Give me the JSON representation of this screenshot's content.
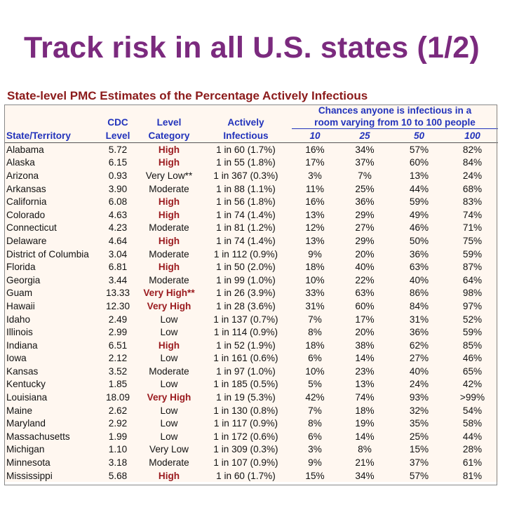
{
  "title": "Track risk in all U.S. states (1/2)",
  "subtitle": "State-level PMC Estimates of the Percentage Actively Infectious",
  "table": {
    "headers": {
      "state": "State/Territory",
      "cdc_line1": "CDC",
      "cdc_line2": "Level",
      "level_line1": "Level",
      "level_line2": "Category",
      "active_line1": "Actively",
      "active_line2": "Infectious",
      "chances_line1": "Chances anyone is infectious in a",
      "chances_line2": "room varying from 10 to 100 people",
      "room_sizes": [
        "10",
        "25",
        "50",
        "100"
      ]
    },
    "rows": [
      {
        "state": "Alabama",
        "cdc": "5.72",
        "category": "High",
        "active": "1 in 60 (1.7%)",
        "p10": "16%",
        "p25": "34%",
        "p50": "57%",
        "p100": "82%"
      },
      {
        "state": "Alaska",
        "cdc": "6.15",
        "category": "High",
        "active": "1 in 55 (1.8%)",
        "p10": "17%",
        "p25": "37%",
        "p50": "60%",
        "p100": "84%"
      },
      {
        "state": "Arizona",
        "cdc": "0.93",
        "category": "Very Low**",
        "active": "1 in 367 (0.3%)",
        "p10": "3%",
        "p25": "7%",
        "p50": "13%",
        "p100": "24%"
      },
      {
        "state": "Arkansas",
        "cdc": "3.90",
        "category": "Moderate",
        "active": "1 in 88 (1.1%)",
        "p10": "11%",
        "p25": "25%",
        "p50": "44%",
        "p100": "68%"
      },
      {
        "state": "California",
        "cdc": "6.08",
        "category": "High",
        "active": "1 in 56 (1.8%)",
        "p10": "16%",
        "p25": "36%",
        "p50": "59%",
        "p100": "83%"
      },
      {
        "state": "Colorado",
        "cdc": "4.63",
        "category": "High",
        "active": "1 in 74 (1.4%)",
        "p10": "13%",
        "p25": "29%",
        "p50": "49%",
        "p100": "74%"
      },
      {
        "state": "Connecticut",
        "cdc": "4.23",
        "category": "Moderate",
        "active": "1 in 81 (1.2%)",
        "p10": "12%",
        "p25": "27%",
        "p50": "46%",
        "p100": "71%"
      },
      {
        "state": "Delaware",
        "cdc": "4.64",
        "category": "High",
        "active": "1 in 74 (1.4%)",
        "p10": "13%",
        "p25": "29%",
        "p50": "50%",
        "p100": "75%"
      },
      {
        "state": "District of Columbia",
        "cdc": "3.04",
        "category": "Moderate",
        "active": "1 in 112 (0.9%)",
        "p10": "9%",
        "p25": "20%",
        "p50": "36%",
        "p100": "59%"
      },
      {
        "state": "Florida",
        "cdc": "6.81",
        "category": "High",
        "active": "1 in 50 (2.0%)",
        "p10": "18%",
        "p25": "40%",
        "p50": "63%",
        "p100": "87%"
      },
      {
        "state": "Georgia",
        "cdc": "3.44",
        "category": "Moderate",
        "active": "1 in 99 (1.0%)",
        "p10": "10%",
        "p25": "22%",
        "p50": "40%",
        "p100": "64%"
      },
      {
        "state": "Guam",
        "cdc": "13.33",
        "category": "Very High**",
        "active": "1 in 26 (3.9%)",
        "p10": "33%",
        "p25": "63%",
        "p50": "86%",
        "p100": "98%"
      },
      {
        "state": "Hawaii",
        "cdc": "12.30",
        "category": "Very High",
        "active": "1 in 28 (3.6%)",
        "p10": "31%",
        "p25": "60%",
        "p50": "84%",
        "p100": "97%"
      },
      {
        "state": "Idaho",
        "cdc": "2.49",
        "category": "Low",
        "active": "1 in 137 (0.7%)",
        "p10": "7%",
        "p25": "17%",
        "p50": "31%",
        "p100": "52%"
      },
      {
        "state": "Illinois",
        "cdc": "2.99",
        "category": "Low",
        "active": "1 in 114 (0.9%)",
        "p10": "8%",
        "p25": "20%",
        "p50": "36%",
        "p100": "59%"
      },
      {
        "state": "Indiana",
        "cdc": "6.51",
        "category": "High",
        "active": "1 in 52 (1.9%)",
        "p10": "18%",
        "p25": "38%",
        "p50": "62%",
        "p100": "85%"
      },
      {
        "state": "Iowa",
        "cdc": "2.12",
        "category": "Low",
        "active": "1 in 161 (0.6%)",
        "p10": "6%",
        "p25": "14%",
        "p50": "27%",
        "p100": "46%"
      },
      {
        "state": "Kansas",
        "cdc": "3.52",
        "category": "Moderate",
        "active": "1 in 97 (1.0%)",
        "p10": "10%",
        "p25": "23%",
        "p50": "40%",
        "p100": "65%"
      },
      {
        "state": "Kentucky",
        "cdc": "1.85",
        "category": "Low",
        "active": "1 in 185 (0.5%)",
        "p10": "5%",
        "p25": "13%",
        "p50": "24%",
        "p100": "42%"
      },
      {
        "state": "Louisiana",
        "cdc": "18.09",
        "category": "Very High",
        "active": "1 in 19 (5.3%)",
        "p10": "42%",
        "p25": "74%",
        "p50": "93%",
        "p100": ">99%"
      },
      {
        "state": "Maine",
        "cdc": "2.62",
        "category": "Low",
        "active": "1 in 130 (0.8%)",
        "p10": "7%",
        "p25": "18%",
        "p50": "32%",
        "p100": "54%"
      },
      {
        "state": "Maryland",
        "cdc": "2.92",
        "category": "Low",
        "active": "1 in 117 (0.9%)",
        "p10": "8%",
        "p25": "19%",
        "p50": "35%",
        "p100": "58%"
      },
      {
        "state": "Massachusetts",
        "cdc": "1.99",
        "category": "Low",
        "active": "1 in 172 (0.6%)",
        "p10": "6%",
        "p25": "14%",
        "p50": "25%",
        "p100": "44%"
      },
      {
        "state": "Michigan",
        "cdc": "1.10",
        "category": "Very Low",
        "active": "1 in 309 (0.3%)",
        "p10": "3%",
        "p25": "8%",
        "p50": "15%",
        "p100": "28%"
      },
      {
        "state": "Minnesota",
        "cdc": "3.18",
        "category": "Moderate",
        "active": "1 in 107 (0.9%)",
        "p10": "9%",
        "p25": "21%",
        "p50": "37%",
        "p100": "61%"
      },
      {
        "state": "Mississippi",
        "cdc": "5.68",
        "category": "High",
        "active": "1 in 60 (1.7%)",
        "p10": "15%",
        "p25": "34%",
        "p50": "57%",
        "p100": "81%"
      }
    ]
  },
  "colors": {
    "title": "#7b2a7e",
    "subtitle": "#8b1a1a",
    "header": "#2233bb",
    "high_risk": "#9b1c20",
    "table_background": "#fff7f0"
  }
}
